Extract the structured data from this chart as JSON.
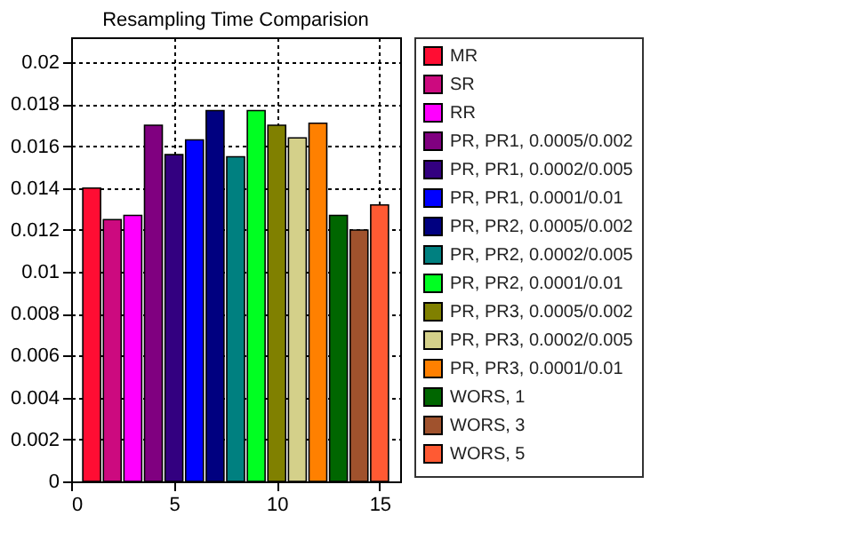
{
  "chart_data": {
    "type": "bar",
    "title": "Resampling Time Comparision",
    "xlim": [
      0,
      16
    ],
    "xticks": [
      0,
      5,
      10,
      15
    ],
    "ylim": [
      0,
      0.0212
    ],
    "yticks": [
      0,
      0.002,
      0.004,
      0.006,
      0.008,
      0.01,
      0.012,
      0.014,
      0.016,
      0.018,
      0.02
    ],
    "grid": true,
    "legend": "right",
    "series": [
      {
        "name": "MR",
        "color": "#ff0d33",
        "x": [
          1
        ],
        "values": [
          0.014
        ]
      },
      {
        "name": "SR",
        "color": "#cc0a7f",
        "x": [
          2
        ],
        "values": [
          0.0125
        ]
      },
      {
        "name": "RR",
        "color": "#ff00ff",
        "x": [
          3
        ],
        "values": [
          0.0127
        ]
      },
      {
        "name": "PR, PR1, 0.0005/0.002",
        "color": "#800080",
        "x": [
          4
        ],
        "values": [
          0.017
        ]
      },
      {
        "name": "PR, PR1, 0.0002/0.005",
        "color": "#330080",
        "x": [
          5
        ],
        "values": [
          0.0156
        ]
      },
      {
        "name": "PR, PR1, 0.0001/0.01",
        "color": "#0000ff",
        "x": [
          6
        ],
        "values": [
          0.0163
        ]
      },
      {
        "name": "PR, PR2, 0.0005/0.002",
        "color": "#000080",
        "x": [
          7
        ],
        "values": [
          0.0177
        ]
      },
      {
        "name": "PR, PR2, 0.0002/0.005",
        "color": "#008080",
        "x": [
          8
        ],
        "values": [
          0.0155
        ]
      },
      {
        "name": "PR, PR2, 0.0001/0.01",
        "color": "#00ff22",
        "x": [
          9
        ],
        "values": [
          0.0177
        ]
      },
      {
        "name": "PR, PR3, 0.0005/0.002",
        "color": "#808000",
        "x": [
          10
        ],
        "values": [
          0.017
        ]
      },
      {
        "name": "PR, PR3, 0.0002/0.005",
        "color": "#d4d08a",
        "x": [
          11
        ],
        "values": [
          0.0164
        ]
      },
      {
        "name": "PR, PR3, 0.0001/0.01",
        "color": "#ff8000",
        "x": [
          12
        ],
        "values": [
          0.0171
        ]
      },
      {
        "name": "WORS, 1",
        "color": "#006600",
        "x": [
          13
        ],
        "values": [
          0.0127
        ]
      },
      {
        "name": "WORS, 3",
        "color": "#a0522d",
        "x": [
          14
        ],
        "values": [
          0.012
        ]
      },
      {
        "name": "WORS, 5",
        "color": "#ff5a33",
        "x": [
          15
        ],
        "values": [
          0.0132
        ]
      }
    ]
  }
}
